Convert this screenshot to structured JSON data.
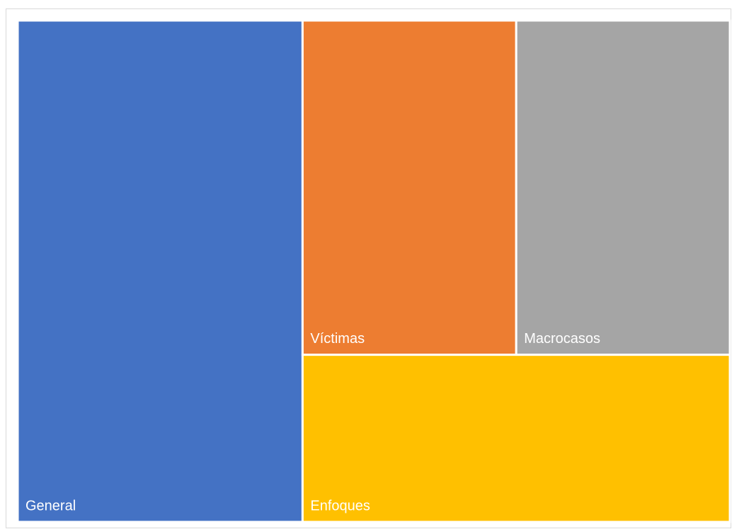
{
  "chart_data": {
    "type": "treemap",
    "categories": [
      "General",
      "Víctimas",
      "Macrocasos",
      "Enfoques"
    ],
    "values": [
      40,
      20,
      20,
      20
    ],
    "colors": [
      "#4472c4",
      "#ed7d31",
      "#a5a5a5",
      "#ffc000"
    ]
  }
}
